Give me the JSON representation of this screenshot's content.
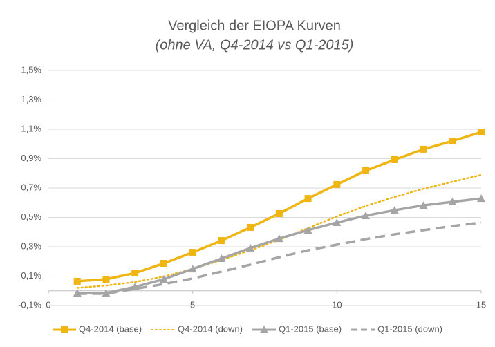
{
  "chart_data": {
    "type": "line",
    "title": "Vergleich der EIOPA Kurven",
    "subtitle": "(ohne VA, Q4-2014 vs Q1-2015)",
    "x": [
      1,
      2,
      3,
      4,
      5,
      6,
      7,
      8,
      9,
      10,
      11,
      12,
      13,
      14,
      15
    ],
    "xlim": [
      0,
      15
    ],
    "xticks": [
      0,
      5,
      10,
      15
    ],
    "ylim": [
      -0.1,
      1.5
    ],
    "yticks": [
      {
        "value": -0.1,
        "label": "-0,1%"
      },
      {
        "value": 0.1,
        "label": "0,1%"
      },
      {
        "value": 0.3,
        "label": "0,3%"
      },
      {
        "value": 0.5,
        "label": "0,5%"
      },
      {
        "value": 0.7,
        "label": "0,7%"
      },
      {
        "value": 0.9,
        "label": "0,9%"
      },
      {
        "value": 1.1,
        "label": "1,1%"
      },
      {
        "value": 1.3,
        "label": "1,3%"
      },
      {
        "value": 1.5,
        "label": "1,5%"
      }
    ],
    "grid": true,
    "legend": "bottom",
    "series": [
      {
        "name": "Q4-2014 (base)",
        "color": "#efb512",
        "dash": "solid",
        "marker": "square",
        "values": [
          0.065,
          0.079,
          0.121,
          0.187,
          0.262,
          0.342,
          0.432,
          0.526,
          0.629,
          0.724,
          0.818,
          0.893,
          0.964,
          1.02,
          1.081
        ]
      },
      {
        "name": "Q4-2014 (down)",
        "color": "#efb512",
        "dash": "dotted",
        "marker": "none",
        "values": [
          0.02,
          0.036,
          0.06,
          0.097,
          0.149,
          0.21,
          0.276,
          0.347,
          0.427,
          0.507,
          0.578,
          0.639,
          0.695,
          0.742,
          0.789
        ]
      },
      {
        "name": "Q1-2015 (base)",
        "color": "#a5a5a5",
        "dash": "solid",
        "marker": "triangle",
        "values": [
          -0.015,
          -0.015,
          0.027,
          0.079,
          0.149,
          0.22,
          0.291,
          0.356,
          0.413,
          0.465,
          0.512,
          0.549,
          0.582,
          0.606,
          0.629
        ]
      },
      {
        "name": "Q1-2015 (down)",
        "color": "#a5a5a5",
        "dash": "dashed",
        "marker": "none",
        "values": [
          -0.02,
          -0.02,
          0.013,
          0.046,
          0.084,
          0.131,
          0.178,
          0.229,
          0.276,
          0.314,
          0.352,
          0.385,
          0.413,
          0.441,
          0.465
        ]
      }
    ]
  }
}
